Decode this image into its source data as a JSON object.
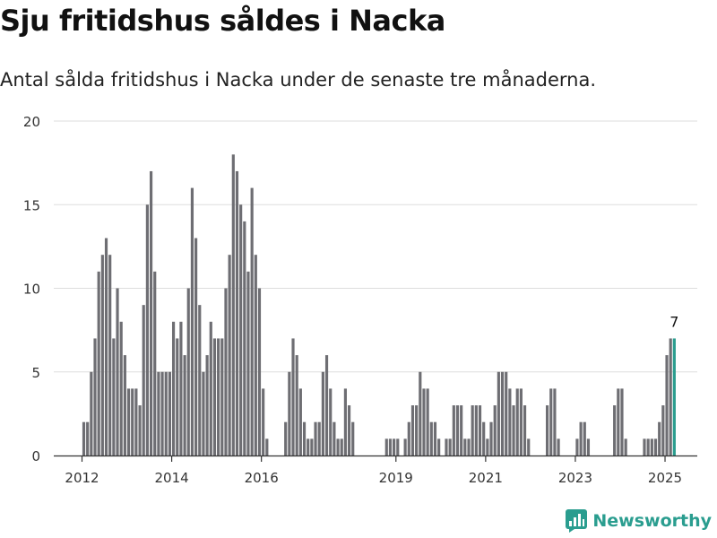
{
  "title": "Sju fritidshus såldes i Nacka",
  "subtitle": "Antal sålda fritidshus i Nacka under de senaste tre månaderna.",
  "brand": "Newsworthy",
  "colors": {
    "bar": "#6e6e73",
    "highlight": "#2a9d8f",
    "grid": "#dddddd",
    "axis": "#333333"
  },
  "chart_data": {
    "type": "bar",
    "ylim": [
      0,
      20
    ],
    "yticks": [
      "0",
      "5",
      "10",
      "15",
      "20"
    ],
    "xticks": [
      {
        "label": "2012",
        "month": 0
      },
      {
        "label": "2014",
        "month": 24
      },
      {
        "label": "2016",
        "month": 48
      },
      {
        "label": "2019",
        "month": 84
      },
      {
        "label": "2021",
        "month": 108
      },
      {
        "label": "2023",
        "month": 132
      },
      {
        "label": "2025",
        "month": 156
      }
    ],
    "start": "2012-01",
    "values": [
      2,
      2,
      5,
      7,
      11,
      12,
      13,
      12,
      7,
      10,
      8,
      6,
      4,
      4,
      4,
      3,
      9,
      15,
      17,
      11,
      5,
      5,
      5,
      5,
      8,
      7,
      8,
      6,
      10,
      16,
      13,
      9,
      5,
      6,
      8,
      7,
      7,
      7,
      10,
      12,
      18,
      17,
      15,
      14,
      11,
      16,
      12,
      10,
      4,
      1,
      0,
      0,
      0,
      0,
      2,
      5,
      7,
      6,
      4,
      2,
      1,
      1,
      2,
      2,
      5,
      6,
      4,
      2,
      1,
      1,
      4,
      3,
      2,
      0,
      0,
      0,
      0,
      0,
      0,
      0,
      0,
      1,
      1,
      1,
      1,
      0,
      1,
      2,
      3,
      3,
      5,
      4,
      4,
      2,
      2,
      1,
      0,
      1,
      1,
      3,
      3,
      3,
      1,
      1,
      3,
      3,
      3,
      2,
      1,
      2,
      3,
      5,
      5,
      5,
      4,
      3,
      4,
      4,
      3,
      1,
      0,
      0,
      0,
      0,
      3,
      4,
      4,
      1,
      0,
      0,
      0,
      0,
      1,
      2,
      2,
      1,
      0,
      0,
      0,
      0,
      0,
      0,
      3,
      4,
      4,
      1,
      0,
      0,
      0,
      0,
      1,
      1,
      1,
      1,
      2,
      3,
      6,
      7,
      7
    ],
    "highlight_last": true,
    "annotation": "7"
  }
}
